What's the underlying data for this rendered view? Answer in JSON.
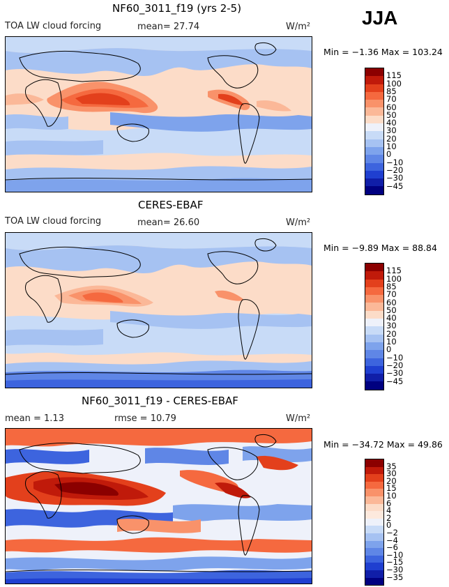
{
  "season": "JJA",
  "units": "W/m²",
  "panels": [
    {
      "title": "NF60_3011_f19 (yrs 2-5)",
      "label": "TOA LW cloud forcing",
      "stat1": "mean=  27.74",
      "stat2": "",
      "minmax": "Min =  −1.36 Max = 103.24",
      "levels": [
        "115",
        "100",
        "85",
        "70",
        "60",
        "50",
        "40",
        "30",
        "20",
        "10",
        "0",
        "−10",
        "−20",
        "−30",
        "−45"
      ],
      "colors": [
        "#8b0000",
        "#c01a0a",
        "#e3401c",
        "#f5693f",
        "#f9926a",
        "#fbb898",
        "#fcdcc8",
        "#eef1fa",
        "#c8dbf7",
        "#a6c2f2",
        "#7ea3ec",
        "#5f86e6",
        "#3d64de",
        "#1f3fd0",
        "#101ea8",
        "#000080"
      ]
    },
    {
      "title": "CERES-EBAF",
      "label": "TOA LW cloud forcing",
      "stat1": "mean=  26.60",
      "stat2": "",
      "minmax": "Min =  −9.89 Max =  88.84",
      "levels": [
        "115",
        "100",
        "85",
        "70",
        "60",
        "50",
        "40",
        "30",
        "20",
        "10",
        "0",
        "−10",
        "−20",
        "−30",
        "−45"
      ],
      "colors": [
        "#8b0000",
        "#c01a0a",
        "#e3401c",
        "#f5693f",
        "#f9926a",
        "#fbb898",
        "#fcdcc8",
        "#eef1fa",
        "#c8dbf7",
        "#a6c2f2",
        "#7ea3ec",
        "#5f86e6",
        "#3d64de",
        "#1f3fd0",
        "#101ea8",
        "#000080"
      ]
    },
    {
      "title": "NF60_3011_f19 - CERES-EBAF",
      "label": "mean =    1.13",
      "stat1": "rmse =  10.79",
      "stat2": "",
      "minmax": "Min = −34.72 Max =  49.86",
      "levels": [
        "35",
        "30",
        "20",
        "15",
        "10",
        "6",
        "4",
        "2",
        "0",
        "−2",
        "−4",
        "−6",
        "−10",
        "−15",
        "−30",
        "−35"
      ],
      "colors": [
        "#8b0000",
        "#c01a0a",
        "#e3401c",
        "#f5693f",
        "#f9926a",
        "#fbb898",
        "#fcdcc8",
        "#fde9dd",
        "#eef1fa",
        "#c8dbf7",
        "#a6c2f2",
        "#7ea3ec",
        "#5f86e6",
        "#3d64de",
        "#1f3fd0",
        "#101ea8",
        "#000080"
      ]
    }
  ]
}
